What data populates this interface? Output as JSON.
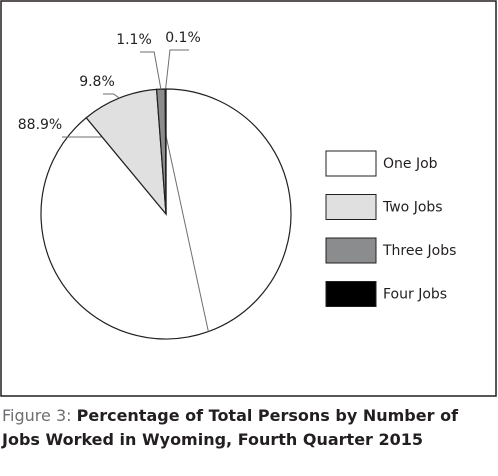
{
  "chart_data": {
    "type": "pie",
    "label": "Figure 3:",
    "title": "Percentage of Total Persons by Number of Jobs Worked in Wyoming, Fourth Quarter 2015",
    "categories": [
      "One Job",
      "Two Jobs",
      "Three Jobs",
      "Four Jobs"
    ],
    "values": [
      88.9,
      9.8,
      1.1,
      0.1
    ],
    "value_labels": [
      "88.9%",
      "9.8%",
      "1.1%",
      "0.1%"
    ],
    "colors": [
      "#ffffff",
      "#e0e0e1",
      "#8b8c8e",
      "#000000"
    ],
    "legend": "right"
  }
}
